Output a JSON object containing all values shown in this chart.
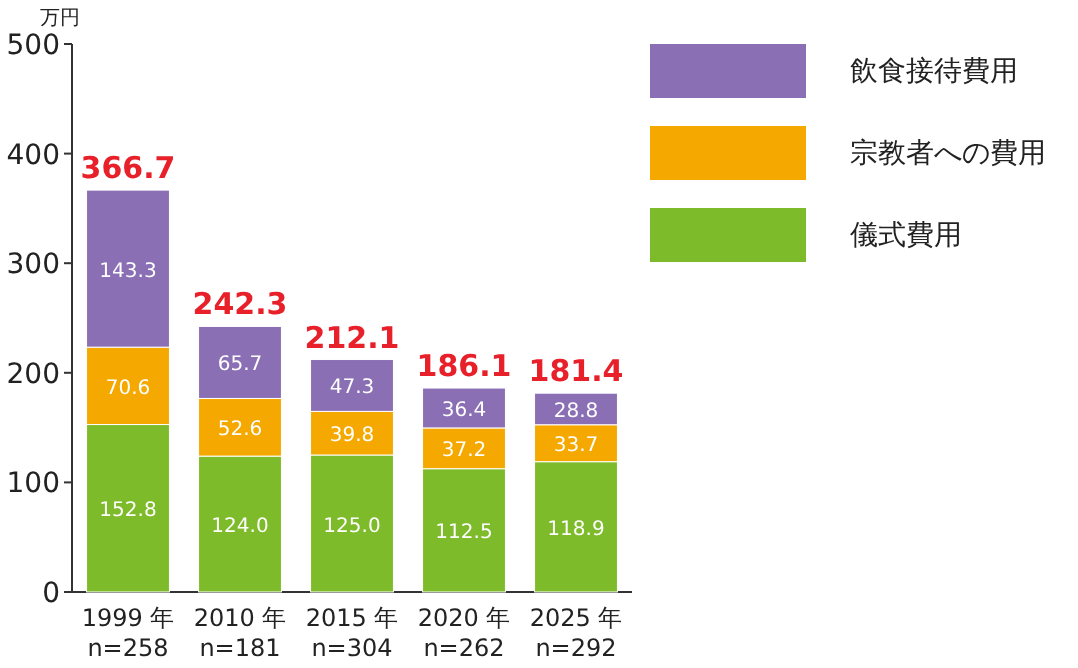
{
  "chart_data": {
    "type": "bar",
    "stacked": true,
    "ylabel": "万円",
    "categories": [
      "1999 年\nn=258",
      "2010 年\nn=181",
      "2015 年\nn=304",
      "2020 年\nn=262",
      "2025 年\nn=292"
    ],
    "series": [
      {
        "name": "儀式費用",
        "color": "#7dbb2a",
        "values": [
          152.8,
          124.0,
          125.0,
          112.5,
          118.9
        ],
        "value_labels": [
          "152.8",
          "124.0",
          "125.0",
          "112.5",
          "118.9"
        ]
      },
      {
        "name": "宗教者への費用",
        "color": "#f5a800",
        "values": [
          70.6,
          52.6,
          39.8,
          37.2,
          33.7
        ],
        "value_labels": [
          "70.6",
          "52.6",
          "39.8",
          "37.2",
          "33.7"
        ]
      },
      {
        "name": "飲食接待費用",
        "color": "#8a6fb5",
        "values": [
          143.3,
          65.7,
          47.3,
          36.4,
          28.8
        ],
        "value_labels": [
          "143.3",
          "65.7",
          "47.3",
          "36.4",
          "28.8"
        ]
      }
    ],
    "totals": [
      "366.7",
      "242.3",
      "212.1",
      "186.1",
      "181.4"
    ],
    "legend": "top right",
    "ylim": [
      0,
      500
    ],
    "yticks": [
      0,
      100,
      200,
      300,
      400,
      500
    ]
  }
}
